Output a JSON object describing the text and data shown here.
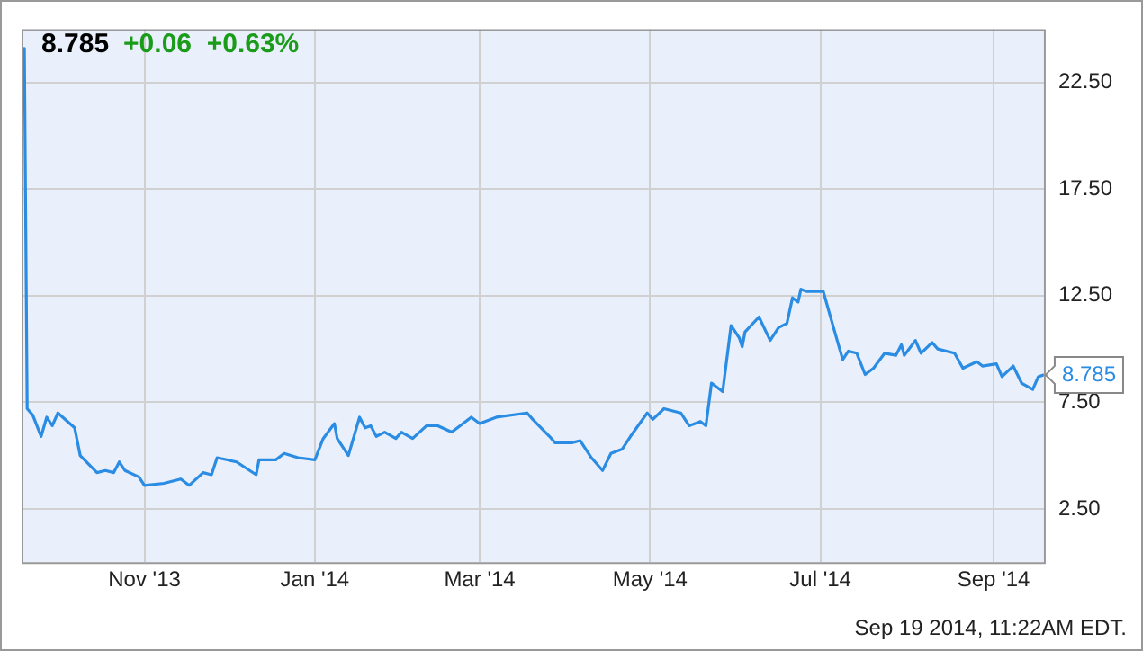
{
  "chart_data": {
    "type": "line",
    "title": "8.785",
    "subtitle": "+0.06  +0.63%",
    "x": [
      "2013-09-18",
      "2013-09-19",
      "2013-09-20",
      "2013-09-22",
      "2013-09-25",
      "2013-09-27",
      "2013-09-29",
      "2013-10-01",
      "2013-10-07",
      "2013-10-09",
      "2013-10-15",
      "2013-10-18",
      "2013-10-21",
      "2013-10-23",
      "2013-10-25",
      "2013-10-30",
      "2013-11-01",
      "2013-11-08",
      "2013-11-14",
      "2013-11-17",
      "2013-11-22",
      "2013-11-25",
      "2013-11-27",
      "2013-12-04",
      "2013-12-11",
      "2013-12-12",
      "2013-12-18",
      "2013-12-21",
      "2013-12-26",
      "2014-01-01",
      "2014-01-04",
      "2014-01-08",
      "2014-01-09",
      "2014-01-13",
      "2014-01-17",
      "2014-01-19",
      "2014-01-21",
      "2014-01-23",
      "2014-01-26",
      "2014-01-30",
      "2014-02-01",
      "2014-02-05",
      "2014-02-10",
      "2014-02-14",
      "2014-02-19",
      "2014-02-26",
      "2014-03-01",
      "2014-03-07",
      "2014-03-18",
      "2014-03-20",
      "2014-03-26",
      "2014-03-28",
      "2014-04-03",
      "2014-04-06",
      "2014-04-10",
      "2014-04-14",
      "2014-04-17",
      "2014-04-21",
      "2014-04-24",
      "2014-04-30",
      "2014-05-02",
      "2014-05-06",
      "2014-05-12",
      "2014-05-15",
      "2014-05-19",
      "2014-05-21",
      "2014-05-23",
      "2014-05-27",
      "2014-05-30",
      "2014-06-02",
      "2014-06-03",
      "2014-06-04",
      "2014-06-09",
      "2014-06-13",
      "2014-06-16",
      "2014-06-19",
      "2014-06-21",
      "2014-06-23",
      "2014-06-24",
      "2014-06-26",
      "2014-07-02",
      "2014-07-07",
      "2014-07-09",
      "2014-07-11",
      "2014-07-14",
      "2014-07-17",
      "2014-07-20",
      "2014-07-24",
      "2014-07-28",
      "2014-07-30",
      "2014-07-31",
      "2014-08-04",
      "2014-08-06",
      "2014-08-10",
      "2014-08-12",
      "2014-08-18",
      "2014-08-21",
      "2014-08-26",
      "2014-08-28",
      "2014-09-02",
      "2014-09-04",
      "2014-09-08",
      "2014-09-11",
      "2014-09-15",
      "2014-09-17",
      "2014-09-19"
    ],
    "series": [
      {
        "color": "#2b8ce3",
        "values": [
          22.7,
          24.1,
          7.2,
          6.9,
          5.9,
          6.8,
          6.4,
          7.0,
          6.3,
          5.0,
          4.2,
          4.3,
          4.2,
          4.7,
          4.3,
          4.0,
          3.6,
          3.7,
          3.9,
          3.6,
          4.2,
          4.1,
          4.9,
          4.7,
          4.1,
          4.8,
          4.8,
          5.1,
          4.9,
          4.8,
          5.8,
          6.5,
          5.8,
          5.0,
          6.8,
          6.3,
          6.4,
          5.9,
          6.1,
          5.8,
          6.1,
          5.8,
          6.4,
          6.4,
          6.1,
          6.8,
          6.5,
          6.8,
          7.0,
          6.7,
          5.9,
          5.6,
          5.6,
          5.7,
          4.9,
          4.3,
          5.1,
          5.3,
          5.9,
          7.0,
          6.7,
          7.2,
          7.0,
          6.4,
          6.6,
          6.4,
          8.4,
          8.0,
          11.1,
          10.5,
          10.1,
          10.8,
          11.5,
          10.4,
          11.0,
          11.2,
          12.4,
          12.2,
          12.8,
          12.7,
          12.7,
          10.4,
          9.5,
          9.9,
          9.8,
          8.8,
          9.1,
          9.8,
          9.7,
          10.2,
          9.7,
          10.4,
          9.8,
          10.3,
          10.0,
          9.8,
          9.1,
          9.4,
          9.2,
          9.3,
          8.7,
          9.2,
          8.4,
          8.1,
          8.7,
          8.785
        ]
      }
    ],
    "xlim": [
      "2013-09-18",
      "2014-09-19"
    ],
    "xticks": [
      {
        "value": "2013-11-01",
        "label": "Nov '13"
      },
      {
        "value": "2014-01-01",
        "label": "Jan '14"
      },
      {
        "value": "2014-03-01",
        "label": "Mar '14"
      },
      {
        "value": "2014-05-01",
        "label": "May '14"
      },
      {
        "value": "2014-07-01",
        "label": "Jul '14"
      },
      {
        "value": "2014-09-01",
        "label": "Sep '14"
      }
    ],
    "ylim": [
      0,
      25
    ],
    "yticks": [
      {
        "value": 2.5,
        "label": "2.50"
      },
      {
        "value": 7.5,
        "label": "7.50"
      },
      {
        "value": 12.5,
        "label": "12.50"
      },
      {
        "value": 17.5,
        "label": "17.50"
      },
      {
        "value": 22.5,
        "label": "22.50"
      }
    ],
    "annotations": [
      {
        "text": "8.785",
        "x": "2014-09-19",
        "y": 8.785
      },
      "Sep 19 2014, 11:22AM EDT."
    ],
    "grid": true,
    "legend": false,
    "marker": "none",
    "line_style": "solid"
  }
}
